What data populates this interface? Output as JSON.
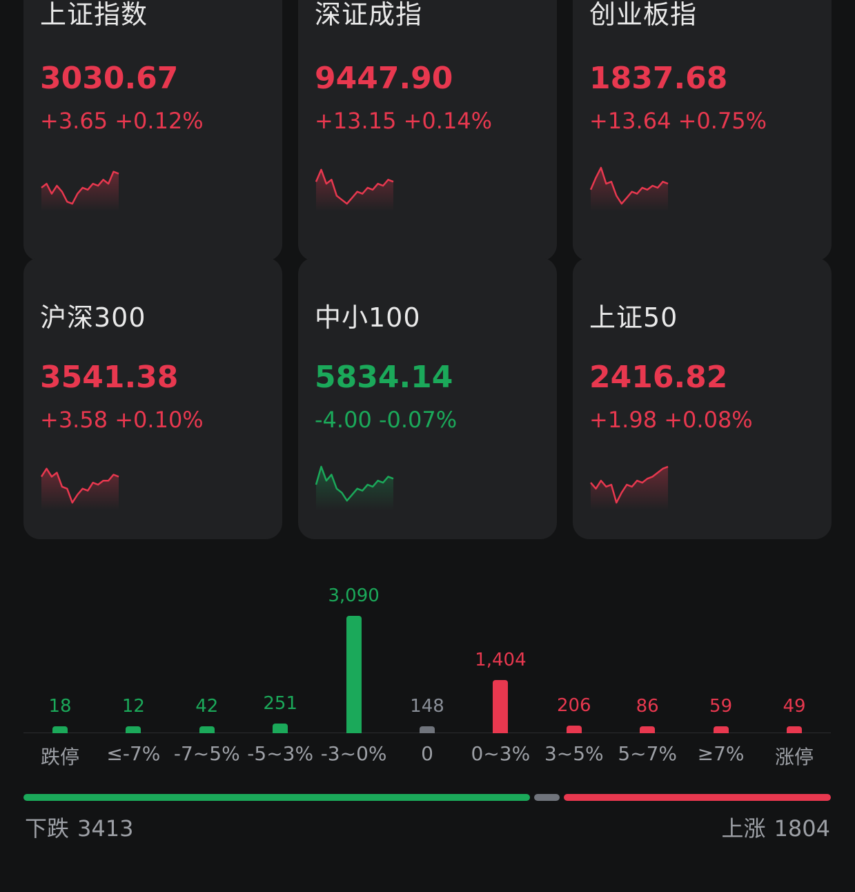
{
  "indices": [
    {
      "name": "上证指数",
      "price": "3030.67",
      "change": "+3.65 +0.12%",
      "trend": "up",
      "spark": [
        0.55,
        0.45,
        0.7,
        0.5,
        0.65,
        0.9,
        0.95,
        0.7,
        0.55,
        0.6,
        0.45,
        0.5,
        0.35,
        0.45,
        0.15,
        0.2
      ]
    },
    {
      "name": "深证成指",
      "price": "9447.90",
      "change": "+13.15 +0.14%",
      "trend": "up",
      "spark": [
        0.4,
        0.1,
        0.45,
        0.35,
        0.75,
        0.85,
        0.95,
        0.8,
        0.65,
        0.7,
        0.55,
        0.6,
        0.45,
        0.5,
        0.35,
        0.4
      ]
    },
    {
      "name": "创业板指",
      "price": "1837.68",
      "change": "+13.64 +0.75%",
      "trend": "up",
      "spark": [
        0.6,
        0.3,
        0.05,
        0.45,
        0.4,
        0.75,
        0.95,
        0.8,
        0.65,
        0.7,
        0.55,
        0.6,
        0.5,
        0.55,
        0.4,
        0.45
      ]
    },
    {
      "name": "沪深300",
      "price": "3541.38",
      "change": "+3.58 +0.10%",
      "trend": "up",
      "spark": [
        0.3,
        0.1,
        0.3,
        0.2,
        0.55,
        0.6,
        0.95,
        0.75,
        0.6,
        0.65,
        0.45,
        0.5,
        0.4,
        0.4,
        0.25,
        0.3
      ]
    },
    {
      "name": "中小100",
      "price": "5834.14",
      "change": "-4.00 -0.07%",
      "trend": "down",
      "spark": [
        0.5,
        0.05,
        0.4,
        0.25,
        0.6,
        0.7,
        0.9,
        0.75,
        0.6,
        0.65,
        0.5,
        0.55,
        0.4,
        0.45,
        0.3,
        0.35
      ]
    },
    {
      "name": "上证50",
      "price": "2416.82",
      "change": "+1.98 +0.08%",
      "trend": "up",
      "spark": [
        0.45,
        0.6,
        0.4,
        0.55,
        0.5,
        0.95,
        0.7,
        0.5,
        0.55,
        0.4,
        0.45,
        0.35,
        0.3,
        0.2,
        0.1,
        0.05
      ]
    }
  ],
  "colors": {
    "up": "#e8384f",
    "down": "#1ba95a",
    "flat": "#70747c"
  },
  "distribution": [
    {
      "label": "跌停",
      "value": 18,
      "display": "18",
      "trend": "down"
    },
    {
      "label": "≤-7%",
      "value": 12,
      "display": "12",
      "trend": "down"
    },
    {
      "label": "-7~5%",
      "value": 42,
      "display": "42",
      "trend": "down"
    },
    {
      "label": "-5~3%",
      "value": 251,
      "display": "251",
      "trend": "down"
    },
    {
      "label": "-3~0%",
      "value": 3090,
      "display": "3,090",
      "trend": "down"
    },
    {
      "label": "0",
      "value": 148,
      "display": "148",
      "trend": "flat"
    },
    {
      "label": "0~3%",
      "value": 1404,
      "display": "1,404",
      "trend": "up"
    },
    {
      "label": "3~5%",
      "value": 206,
      "display": "206",
      "trend": "up"
    },
    {
      "label": "5~7%",
      "value": 86,
      "display": "86",
      "trend": "up"
    },
    {
      "label": "≥7%",
      "value": 59,
      "display": "59",
      "trend": "up"
    },
    {
      "label": "涨停",
      "value": 49,
      "display": "49",
      "trend": "up"
    }
  ],
  "summary": {
    "down_label": "下跌",
    "down_count": "3413",
    "up_label": "上涨",
    "up_count": "1804",
    "down_fraction": 0.63,
    "flat_fraction": 0.037,
    "up_fraction": 0.333
  }
}
